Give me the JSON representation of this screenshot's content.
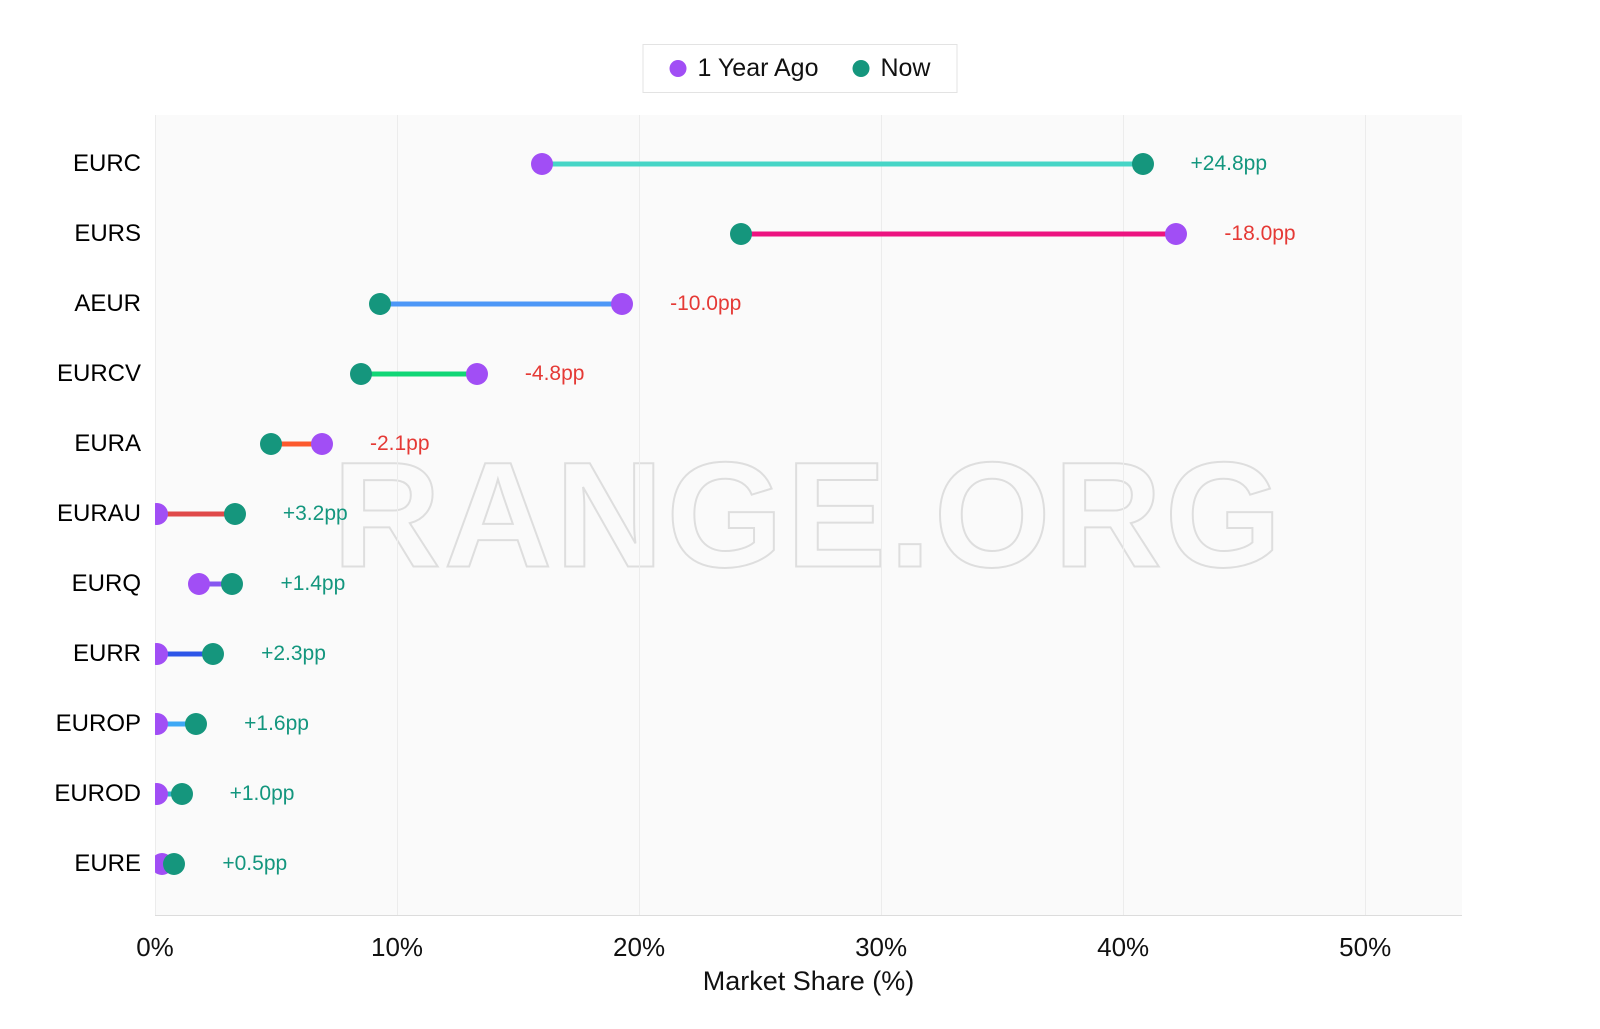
{
  "legend": {
    "prev_label": "1 Year Ago",
    "now_label": "Now"
  },
  "watermark": "RANGE.ORG",
  "colors": {
    "prev_dot": "#a14ef5",
    "now_dot": "#15967d",
    "positive_delta": "#13967e",
    "negative_delta": "#e53935",
    "plot_bg": "#fafafa",
    "gridline": "#ececec"
  },
  "chart_data": {
    "type": "dumbbell",
    "title": "",
    "xlabel": "Market Share (%)",
    "ylabel": "",
    "legend_position": "top-center",
    "grid": true,
    "axis_max": 54,
    "x_ticks": [
      "0%",
      "10%",
      "20%",
      "30%",
      "40%",
      "50%"
    ],
    "x_tick_values": [
      0,
      10,
      20,
      30,
      40,
      50
    ],
    "series": [
      {
        "name": "1 Year Ago",
        "marker_color": "#a14ef5"
      },
      {
        "name": "Now",
        "marker_color": "#15967d"
      }
    ],
    "rows": [
      {
        "category": "EURC",
        "prev": 16.0,
        "now": 40.8,
        "delta": "+24.8pp",
        "direction": "positive",
        "line_color": "#46d5c6"
      },
      {
        "category": "EURS",
        "prev": 42.2,
        "now": 24.2,
        "delta": "-18.0pp",
        "direction": "negative",
        "line_color": "#ec1380"
      },
      {
        "category": "AEUR",
        "prev": 19.3,
        "now": 9.3,
        "delta": "-10.0pp",
        "direction": "negative",
        "line_color": "#4d97f7"
      },
      {
        "category": "EURCV",
        "prev": 13.3,
        "now": 8.5,
        "delta": "-4.8pp",
        "direction": "negative",
        "line_color": "#11d676"
      },
      {
        "category": "EURA",
        "prev": 6.9,
        "now": 4.8,
        "delta": "-2.1pp",
        "direction": "negative",
        "line_color": "#fc5a2d"
      },
      {
        "category": "EURAU",
        "prev": 0.1,
        "now": 3.3,
        "delta": "+3.2pp",
        "direction": "positive",
        "line_color": "#e04a4a"
      },
      {
        "category": "EURQ",
        "prev": 1.8,
        "now": 3.2,
        "delta": "+1.4pp",
        "direction": "positive",
        "line_color": "#8657f0"
      },
      {
        "category": "EURR",
        "prev": 0.1,
        "now": 2.4,
        "delta": "+2.3pp",
        "direction": "positive",
        "line_color": "#2d55e8"
      },
      {
        "category": "EUROP",
        "prev": 0.1,
        "now": 1.7,
        "delta": "+1.6pp",
        "direction": "positive",
        "line_color": "#3ea8f5"
      },
      {
        "category": "EUROD",
        "prev": 0.1,
        "now": 1.1,
        "delta": "+1.0pp",
        "direction": "positive",
        "line_color": "#2fb3c9"
      },
      {
        "category": "EURE",
        "prev": 0.3,
        "now": 0.8,
        "delta": "+0.5pp",
        "direction": "positive",
        "line_color": "#46d5c6"
      }
    ]
  }
}
